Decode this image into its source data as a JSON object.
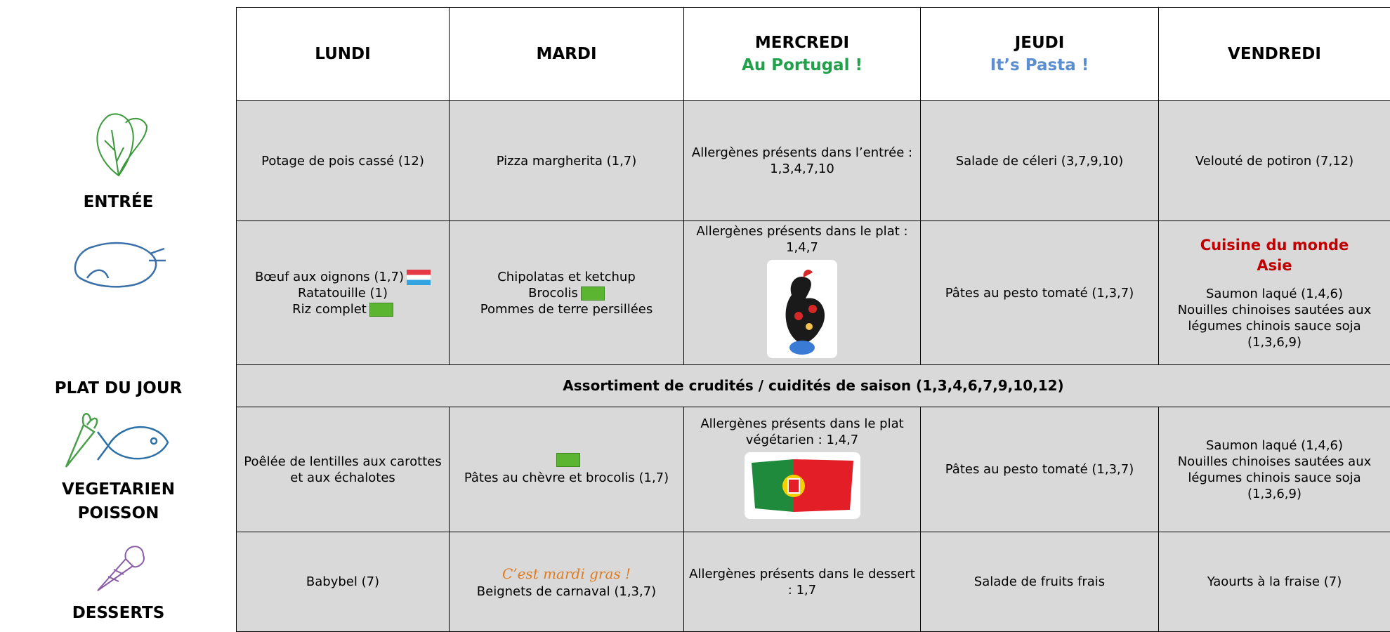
{
  "header": {
    "days": [
      {
        "name": "LUNDI"
      },
      {
        "name": "MARDI"
      },
      {
        "name": "MERCREDI",
        "subtitle": "Au Portugal !"
      },
      {
        "name": "JEUDI",
        "subtitle": "It’s Pasta !"
      },
      {
        "name": "VENDREDI"
      }
    ]
  },
  "rows": [
    {
      "label": [
        "ENTRÉE"
      ],
      "cells": [
        {
          "lines": [
            "Potage de pois cassé (12)"
          ]
        },
        {
          "lines": [
            "Pizza margherita (1,7)"
          ]
        },
        {
          "lines": [
            "Allergènes présents dans l’entrée : 1,3,4,7,10"
          ]
        },
        {
          "lines": [
            "Salade de céleri (3,7,9,10)"
          ]
        },
        {
          "lines": [
            "Velouté de potiron (7,12)"
          ]
        }
      ]
    },
    {
      "label": [
        "PLAT DU JOUR"
      ],
      "cells": [
        {
          "lines": [
            "Bœuf aux oignons (1,7)",
            "Ratatouille (1)",
            "Riz complet"
          ]
        },
        {
          "lines": [
            "Chipolatas et ketchup",
            "Brocolis",
            "Pommes de terre persillées"
          ]
        },
        {
          "lines": [
            "Allergènes présents dans le plat : 1,4,7"
          ]
        },
        {
          "lines": [
            "Pâtes au pesto tomaté (1,3,7)"
          ]
        },
        {
          "highlight": [
            "Cuisine du monde",
            "Asie"
          ],
          "lines": [
            "Saumon laqué (1,4,6)",
            "Nouilles chinoises sautées aux légumes chinois sauce soja (1,3,6,9)"
          ]
        }
      ]
    },
    {
      "label": [
        "VEGETARIEN",
        "POISSON"
      ],
      "cells": [
        {
          "lines": [
            "Poêlée de lentilles aux carottes et aux échalotes"
          ]
        },
        {
          "lines": [
            "Pâtes au chèvre et brocolis (1,7)"
          ]
        },
        {
          "lines": [
            "Allergènes présents dans le plat végétarien : 1,4,7"
          ]
        },
        {
          "lines": [
            "Pâtes au pesto tomaté (1,3,7)"
          ]
        },
        {
          "lines": [
            "Saumon laqué (1,4,6)",
            "Nouilles chinoises sautées aux légumes chinois sauce soja (1,3,6,9)"
          ]
        }
      ]
    },
    {
      "label": [
        "DESSERTS"
      ],
      "cells": [
        {
          "lines": [
            "Babybel (7)"
          ]
        },
        {
          "note": "C’est mardi gras !",
          "lines": [
            "Beignets de carnaval (1,3,7)"
          ]
        },
        {
          "lines": [
            "Allergènes présents dans le dessert : 1,7"
          ]
        },
        {
          "lines": [
            "Salade de fruits frais"
          ]
        },
        {
          "lines": [
            "Yaourts à la fraise (7)"
          ]
        }
      ]
    }
  ],
  "crudites": "Assortiment de crudités / cuidités de saison (1,3,4,6,7,9,10,12)"
}
